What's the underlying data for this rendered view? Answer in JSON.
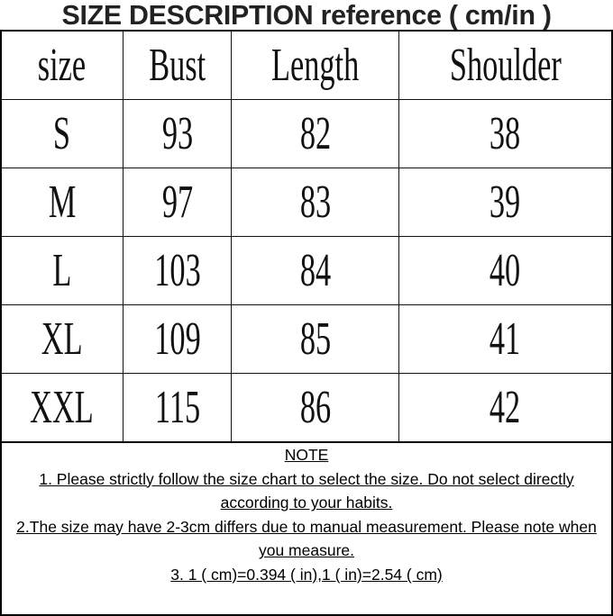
{
  "title": "SIZE DESCRIPTION reference ( cm/in )",
  "table": {
    "headers": [
      "size",
      "Bust",
      "Length",
      "Shoulder"
    ],
    "rows": [
      [
        "S",
        "93",
        "82",
        "38"
      ],
      [
        "M",
        "97",
        "83",
        "39"
      ],
      [
        "L",
        "103",
        "84",
        "40"
      ],
      [
        "XL",
        "109",
        "85",
        "41"
      ],
      [
        "XXL",
        "115",
        "86",
        "42"
      ]
    ]
  },
  "notes": {
    "heading": "NOTE",
    "items": [
      "1. Please strictly follow the size chart to select the size. Do not select directly according to your habits.",
      "2.The size may have 2-3cm differs due to manual measurement. Please note when you measure.",
      "3.  1 ( cm)=0.394 ( in),1  ( in)=2.54 ( cm)"
    ]
  }
}
